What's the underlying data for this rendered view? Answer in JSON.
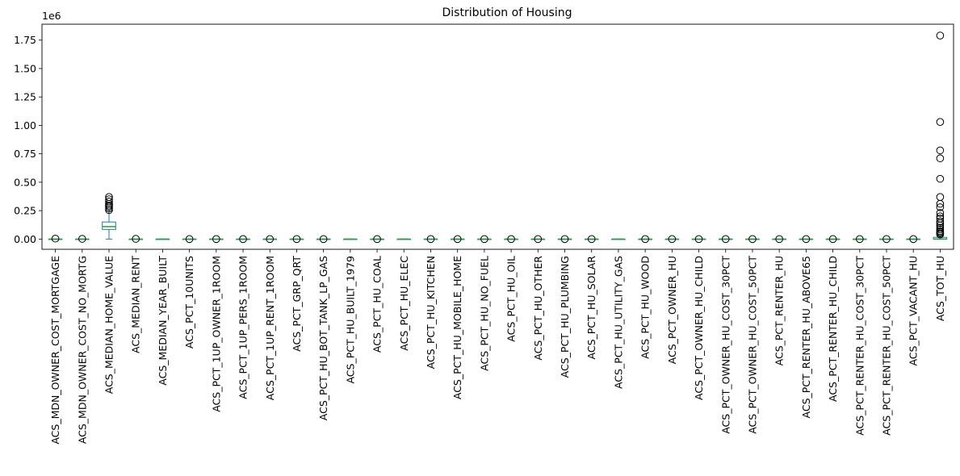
{
  "chart_data": {
    "type": "box",
    "title": "Distribution of Housing",
    "xlabel": "",
    "ylabel": "",
    "y_offset_label": "1e6",
    "ylim": [
      -0.09,
      1.89
    ],
    "yticks": [
      0.0,
      0.25,
      0.5,
      0.75,
      1.0,
      1.25,
      1.5,
      1.75
    ],
    "ytick_labels": [
      "0.00",
      "0.25",
      "0.50",
      "0.75",
      "1.00",
      "1.25",
      "1.50",
      "1.75"
    ],
    "grid": false,
    "legend": "none",
    "colors": {
      "box": "#1f77b4",
      "median": "#2ca02c",
      "outlier": "#000000"
    },
    "categories": [
      "ACS_MDN_OWNER_COST_MORTGAGE",
      "ACS_MDN_OWNER_COST_NO_MORTG",
      "ACS_MEDIAN_HOME_VALUE",
      "ACS_MEDIAN_RENT",
      "ACS_MEDIAN_YEAR_BUILT",
      "ACS_PCT_10UNITS",
      "ACS_PCT_1UP_OWNER_1ROOM",
      "ACS_PCT_1UP_PERS_1ROOM",
      "ACS_PCT_1UP_RENT_1ROOM",
      "ACS_PCT_GRP_QRT",
      "ACS_PCT_HU_BOT_TANK_LP_GAS",
      "ACS_PCT_HU_BUILT_1979",
      "ACS_PCT_HU_COAL",
      "ACS_PCT_HU_ELEC",
      "ACS_PCT_HU_KITCHEN",
      "ACS_PCT_HU_MOBILE_HOME",
      "ACS_PCT_HU_NO_FUEL",
      "ACS_PCT_HU_OIL",
      "ACS_PCT_HU_OTHER",
      "ACS_PCT_HU_PLUMBING",
      "ACS_PCT_HU_SOLAR",
      "ACS_PCT_HU_UTILITY_GAS",
      "ACS_PCT_HU_WOOD",
      "ACS_PCT_OWNER_HU",
      "ACS_PCT_OWNER_HU_CHILD",
      "ACS_PCT_OWNER_HU_COST_30PCT",
      "ACS_PCT_OWNER_HU_COST_50PCT",
      "ACS_PCT_RENTER_HU",
      "ACS_PCT_RENTER_HU_ABOVE65",
      "ACS_PCT_RENTER_HU_CHILD",
      "ACS_PCT_RENTER_HU_COST_30PCT",
      "ACS_PCT_RENTER_HU_COST_50PCT",
      "ACS_PCT_VACANT_HU",
      "ACS_TOT_HU"
    ],
    "boxes": [
      {
        "q1": 0.0,
        "median": 0.0,
        "q3": 0.0,
        "whislo": 0.0,
        "whishi": 0.0,
        "fliers": [
          0.004
        ]
      },
      {
        "q1": 0.0,
        "median": 0.0,
        "q3": 0.0,
        "whislo": 0.0,
        "whishi": 0.0,
        "fliers": [
          0.002
        ]
      },
      {
        "q1": 0.085,
        "median": 0.11,
        "q3": 0.15,
        "whislo": 0.0,
        "whishi": 0.245,
        "fliers": [
          0.255,
          0.27,
          0.285,
          0.295,
          0.31,
          0.33,
          0.35,
          0.37
        ]
      },
      {
        "q1": 0.0,
        "median": 0.0,
        "q3": 0.0,
        "whislo": 0.0,
        "whishi": 0.0,
        "fliers": [
          0.002
        ]
      },
      {
        "q1": 0.0,
        "median": 0.0,
        "q3": 0.0,
        "whislo": 0.0,
        "whishi": 0.0,
        "fliers": []
      },
      {
        "q1": 0.0,
        "median": 0.0,
        "q3": 0.0,
        "whislo": 0.0,
        "whishi": 0.0,
        "fliers": [
          0.0
        ]
      },
      {
        "q1": 0.0,
        "median": 0.0,
        "q3": 0.0,
        "whislo": 0.0,
        "whishi": 0.0,
        "fliers": [
          0.0
        ]
      },
      {
        "q1": 0.0,
        "median": 0.0,
        "q3": 0.0,
        "whislo": 0.0,
        "whishi": 0.0,
        "fliers": [
          0.0
        ]
      },
      {
        "q1": 0.0,
        "median": 0.0,
        "q3": 0.0,
        "whislo": 0.0,
        "whishi": 0.0,
        "fliers": [
          0.0
        ]
      },
      {
        "q1": 0.0,
        "median": 0.0,
        "q3": 0.0,
        "whislo": 0.0,
        "whishi": 0.0,
        "fliers": [
          0.0
        ]
      },
      {
        "q1": 0.0,
        "median": 0.0,
        "q3": 0.0,
        "whislo": 0.0,
        "whishi": 0.0,
        "fliers": [
          0.0
        ]
      },
      {
        "q1": 0.0,
        "median": 0.0,
        "q3": 0.0,
        "whislo": 0.0,
        "whishi": 0.0,
        "fliers": []
      },
      {
        "q1": 0.0,
        "median": 0.0,
        "q3": 0.0,
        "whislo": 0.0,
        "whishi": 0.0,
        "fliers": [
          0.0
        ]
      },
      {
        "q1": 0.0,
        "median": 0.0,
        "q3": 0.0,
        "whislo": 0.0,
        "whishi": 0.0,
        "fliers": []
      },
      {
        "q1": 0.0,
        "median": 0.0,
        "q3": 0.0,
        "whislo": 0.0,
        "whishi": 0.0,
        "fliers": [
          0.0
        ]
      },
      {
        "q1": 0.0,
        "median": 0.0,
        "q3": 0.0,
        "whislo": 0.0,
        "whishi": 0.0,
        "fliers": [
          0.0
        ]
      },
      {
        "q1": 0.0,
        "median": 0.0,
        "q3": 0.0,
        "whislo": 0.0,
        "whishi": 0.0,
        "fliers": [
          0.0
        ]
      },
      {
        "q1": 0.0,
        "median": 0.0,
        "q3": 0.0,
        "whislo": 0.0,
        "whishi": 0.0,
        "fliers": [
          0.0
        ]
      },
      {
        "q1": 0.0,
        "median": 0.0,
        "q3": 0.0,
        "whislo": 0.0,
        "whishi": 0.0,
        "fliers": [
          0.0
        ]
      },
      {
        "q1": 0.0,
        "median": 0.0,
        "q3": 0.0,
        "whislo": 0.0,
        "whishi": 0.0,
        "fliers": [
          0.0
        ]
      },
      {
        "q1": 0.0,
        "median": 0.0,
        "q3": 0.0,
        "whislo": 0.0,
        "whishi": 0.0,
        "fliers": [
          0.0
        ]
      },
      {
        "q1": 0.0,
        "median": 0.0,
        "q3": 0.0,
        "whislo": 0.0,
        "whishi": 0.0,
        "fliers": []
      },
      {
        "q1": 0.0,
        "median": 0.0,
        "q3": 0.0,
        "whislo": 0.0,
        "whishi": 0.0,
        "fliers": [
          0.0
        ]
      },
      {
        "q1": 0.0,
        "median": 0.0,
        "q3": 0.0,
        "whislo": 0.0,
        "whishi": 0.0,
        "fliers": [
          0.0
        ]
      },
      {
        "q1": 0.0,
        "median": 0.0,
        "q3": 0.0,
        "whislo": 0.0,
        "whishi": 0.0,
        "fliers": [
          0.0
        ]
      },
      {
        "q1": 0.0,
        "median": 0.0,
        "q3": 0.0,
        "whislo": 0.0,
        "whishi": 0.0,
        "fliers": [
          0.0
        ]
      },
      {
        "q1": 0.0,
        "median": 0.0,
        "q3": 0.0,
        "whislo": 0.0,
        "whishi": 0.0,
        "fliers": [
          0.0
        ]
      },
      {
        "q1": 0.0,
        "median": 0.0,
        "q3": 0.0,
        "whislo": 0.0,
        "whishi": 0.0,
        "fliers": [
          0.0
        ]
      },
      {
        "q1": 0.0,
        "median": 0.0,
        "q3": 0.0,
        "whislo": 0.0,
        "whishi": 0.0,
        "fliers": [
          0.0
        ]
      },
      {
        "q1": 0.0,
        "median": 0.0,
        "q3": 0.0,
        "whislo": 0.0,
        "whishi": 0.0,
        "fliers": [
          0.0
        ]
      },
      {
        "q1": 0.0,
        "median": 0.0,
        "q3": 0.0,
        "whislo": 0.0,
        "whishi": 0.0,
        "fliers": [
          0.0
        ]
      },
      {
        "q1": 0.0,
        "median": 0.0,
        "q3": 0.0,
        "whislo": 0.0,
        "whishi": 0.0,
        "fliers": [
          0.0
        ]
      },
      {
        "q1": 0.0,
        "median": 0.0,
        "q3": 0.0,
        "whislo": 0.0,
        "whishi": 0.0,
        "fliers": [
          0.0
        ]
      },
      {
        "q1": 0.0,
        "median": 0.0,
        "q3": 0.015,
        "whislo": 0.0,
        "whishi": 0.03,
        "fliers": [
          0.04,
          0.05,
          0.06,
          0.07,
          0.085,
          0.1,
          0.12,
          0.14,
          0.155,
          0.18,
          0.2,
          0.23,
          0.28,
          0.31,
          0.37,
          0.53,
          0.71,
          0.78,
          1.03,
          1.79
        ]
      }
    ]
  }
}
